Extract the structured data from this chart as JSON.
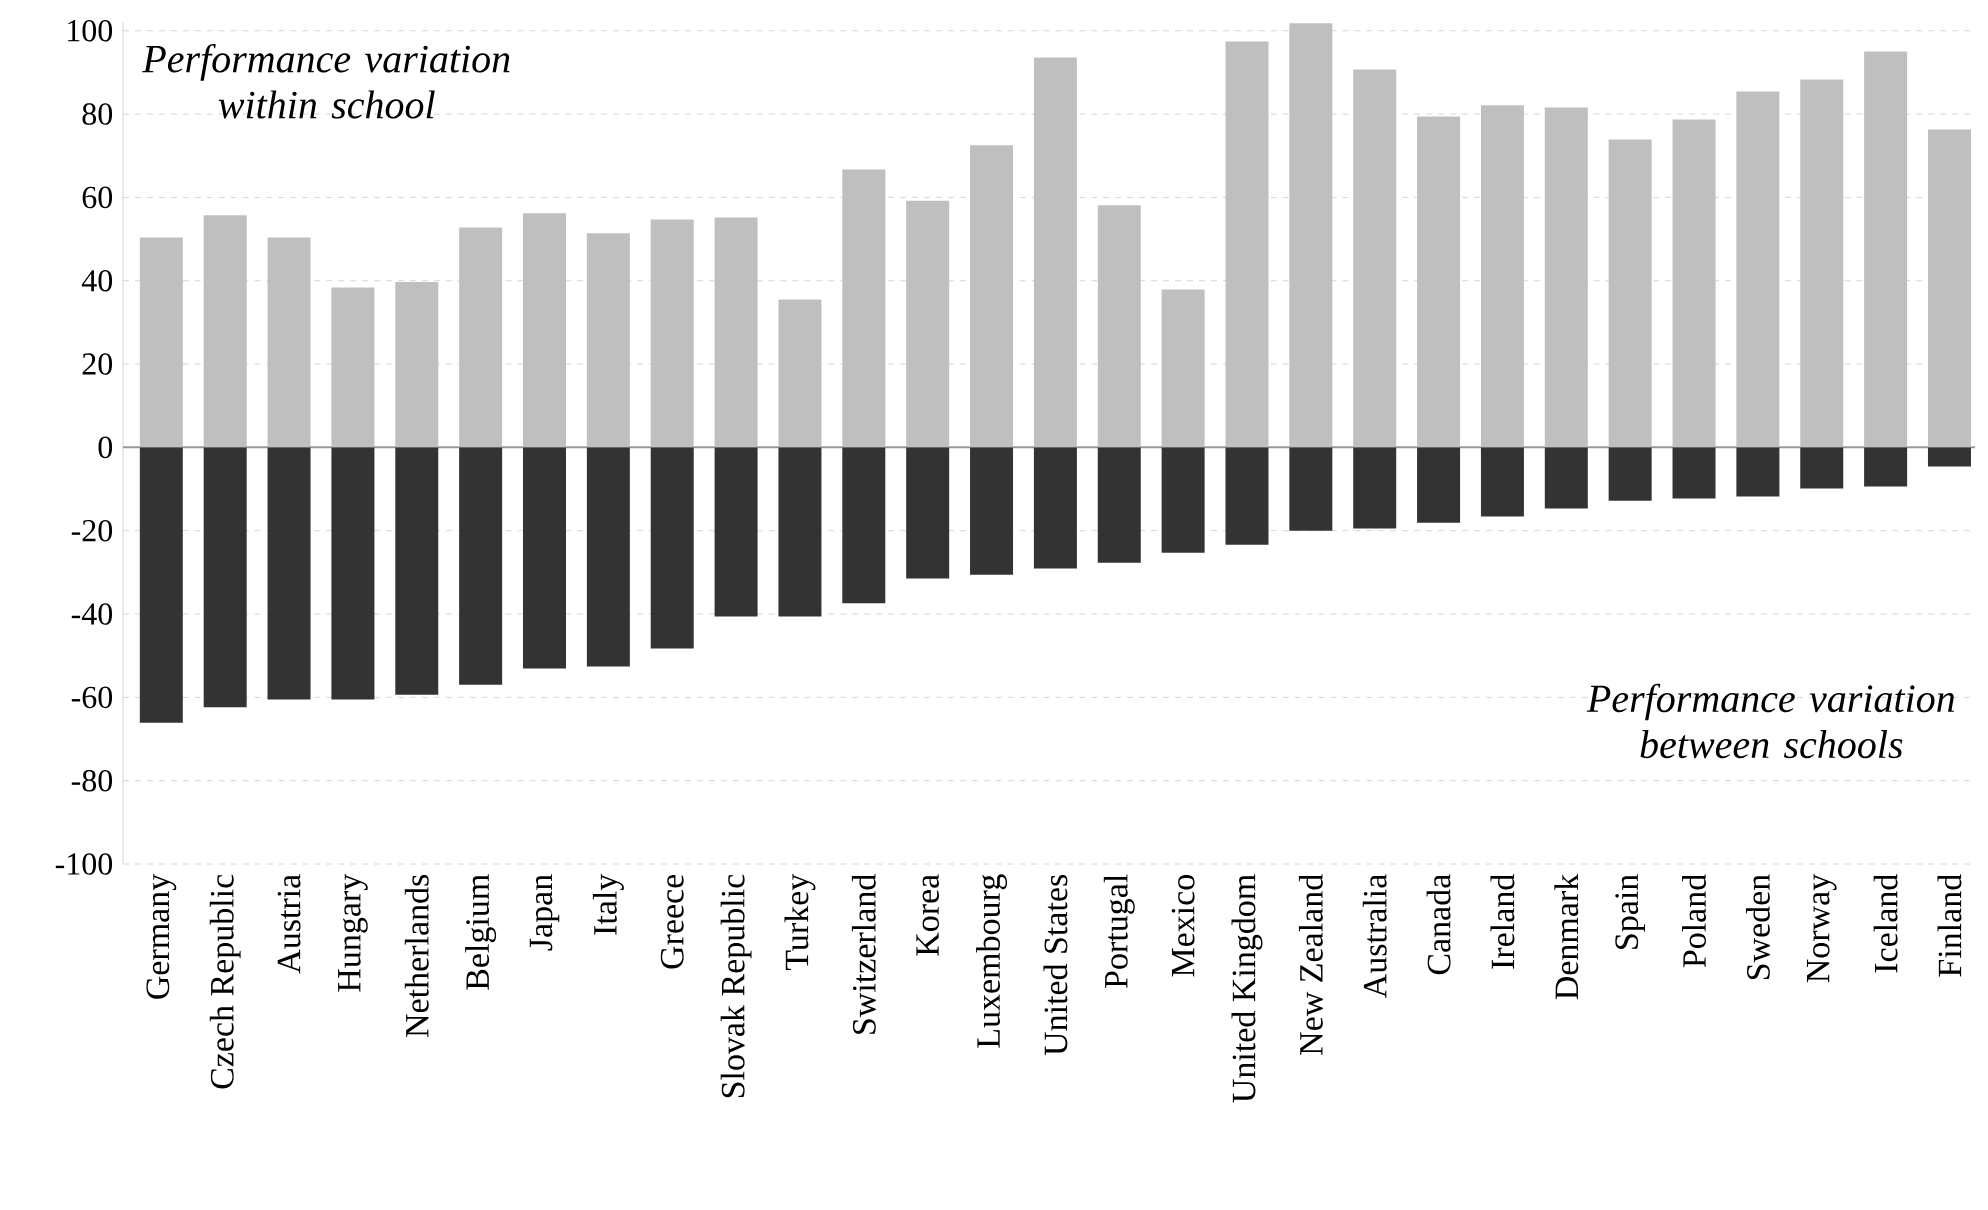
{
  "chart_data": {
    "type": "bar",
    "stacked": true,
    "categories": [
      "Germany",
      "Czech Republic",
      "Austria",
      "Hungary",
      "Netherlands",
      "Belgium",
      "Japan",
      "Italy",
      "Greece",
      "Slovak Republic",
      "Turkey",
      "Switzerland",
      "Korea",
      "Luxembourg",
      "United States",
      "Portugal",
      "Mexico",
      "United Kingdom",
      "New Zealand",
      "Australia",
      "Canada",
      "Ireland",
      "Denmark",
      "Spain",
      "Poland",
      "Sweden",
      "Norway",
      "Iceland",
      "Finland"
    ],
    "series": [
      {
        "color": "#bfbfbf",
        "values": [
          50.4,
          55.7,
          50.4,
          38.4,
          39.7,
          52.8,
          56.2,
          51.4,
          54.7,
          55.2,
          35.5,
          66.7,
          59.2,
          72.5,
          93.6,
          58.1,
          37.9,
          97.4,
          101.8,
          90.7,
          79.4,
          82.1,
          81.6,
          73.9,
          78.7,
          85.4,
          88.3,
          95.0,
          76.3
        ]
      },
      {
        "color": "#333333",
        "values": [
          -66.1,
          -62.4,
          -60.5,
          -60.5,
          -59.4,
          -57.0,
          -53.1,
          -52.6,
          -48.3,
          -40.6,
          -40.6,
          -37.4,
          -31.5,
          -30.6,
          -29.1,
          -27.7,
          -25.3,
          -23.4,
          -20.0,
          -19.5,
          -18.1,
          -16.6,
          -14.7,
          -12.8,
          -12.3,
          -11.8,
          -9.9,
          -9.4,
          -4.6
        ]
      }
    ],
    "ylim": [
      -100,
      102
    ],
    "yticks": [
      -100,
      -80,
      -60,
      -40,
      -20,
      0,
      20,
      40,
      60,
      80,
      100
    ],
    "grid": "y",
    "annotations": [
      "*Performance variation within school*",
      "*Performance variation between schools*"
    ]
  }
}
